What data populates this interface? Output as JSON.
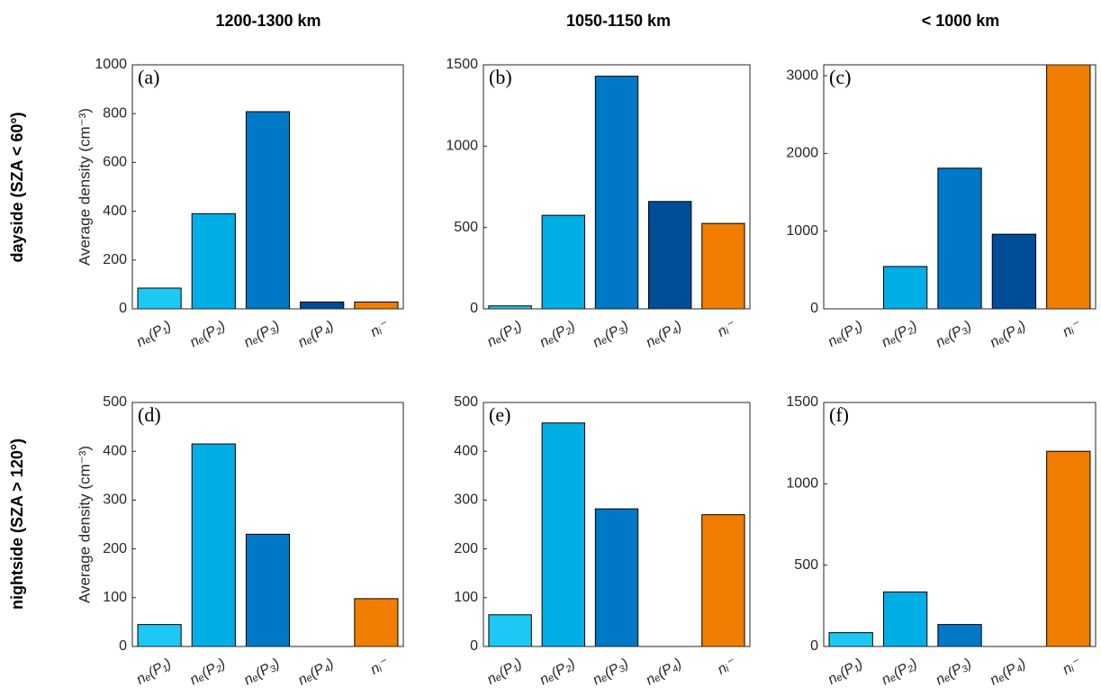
{
  "column_titles": [
    "1200-1300 km",
    "1050-1150 km",
    "< 1000 km"
  ],
  "row_titles": [
    "dayside (SZA < 60°)",
    "nightside (SZA > 120°)"
  ],
  "chart_data": [
    {
      "type": "bar",
      "label": "(a)",
      "ylabel": "Average density (cm⁻³)",
      "categories": [
        "nₑ(P₁)",
        "nₑ(P₂)",
        "nₑ(P₃)",
        "nₑ(P₄)",
        "nᵢ⁻"
      ],
      "values": [
        85,
        390,
        808,
        28,
        28
      ],
      "colors": [
        "#1ec8f5",
        "#00aee6",
        "#0078c8",
        "#004c99",
        "#f07d00"
      ],
      "ylim": [
        0,
        1000
      ],
      "yticks": [
        0,
        200,
        400,
        600,
        800,
        1000
      ]
    },
    {
      "type": "bar",
      "label": "(b)",
      "categories": [
        "nₑ(P₁)",
        "nₑ(P₂)",
        "nₑ(P₃)",
        "nₑ(P₄)",
        "nᵢ⁻"
      ],
      "values": [
        18,
        575,
        1430,
        660,
        525
      ],
      "colors": [
        "#1ec8f5",
        "#00aee6",
        "#0078c8",
        "#004c99",
        "#f07d00"
      ],
      "ylim": [
        0,
        1500
      ],
      "yticks": [
        0,
        500,
        1000,
        1500
      ]
    },
    {
      "type": "bar",
      "label": "(c)",
      "categories": [
        "nₑ(P₁)",
        "nₑ(P₂)",
        "nₑ(P₃)",
        "nₑ(P₄)",
        "nᵢ⁻"
      ],
      "values": [
        0,
        545,
        1810,
        960,
        3140
      ],
      "colors": [
        "#1ec8f5",
        "#00aee6",
        "#0078c8",
        "#004c99",
        "#f07d00"
      ],
      "ylim": [
        0,
        3140
      ],
      "yticks": [
        0,
        1000,
        2000,
        3000
      ]
    },
    {
      "type": "bar",
      "label": "(d)",
      "ylabel": "Average density (cm⁻³)",
      "categories": [
        "nₑ(P₁)",
        "nₑ(P₂)",
        "nₑ(P₃)",
        "nₑ(P₄)",
        "nᵢ⁻"
      ],
      "values": [
        45,
        415,
        230,
        0,
        98
      ],
      "colors": [
        "#1ec8f5",
        "#00aee6",
        "#0078c8",
        "#004c99",
        "#f07d00"
      ],
      "ylim": [
        0,
        500
      ],
      "yticks": [
        0,
        100,
        200,
        300,
        400,
        500
      ]
    },
    {
      "type": "bar",
      "label": "(e)",
      "categories": [
        "nₑ(P₁)",
        "nₑ(P₂)",
        "nₑ(P₃)",
        "nₑ(P₄)",
        "nᵢ⁻"
      ],
      "values": [
        65,
        458,
        282,
        0,
        270
      ],
      "colors": [
        "#1ec8f5",
        "#00aee6",
        "#0078c8",
        "#004c99",
        "#f07d00"
      ],
      "ylim": [
        0,
        500
      ],
      "yticks": [
        0,
        100,
        200,
        300,
        400,
        500
      ]
    },
    {
      "type": "bar",
      "label": "(f)",
      "categories": [
        "nₑ(P₁)",
        "nₑ(P₂)",
        "nₑ(P₃)",
        "nₑ(P₄)",
        "nᵢ⁻"
      ],
      "values": [
        85,
        335,
        135,
        0,
        1200
      ],
      "colors": [
        "#1ec8f5",
        "#00aee6",
        "#0078c8",
        "#004c99",
        "#f07d00"
      ],
      "ylim": [
        0,
        1500
      ],
      "yticks": [
        0,
        500,
        1000,
        1500
      ]
    }
  ]
}
